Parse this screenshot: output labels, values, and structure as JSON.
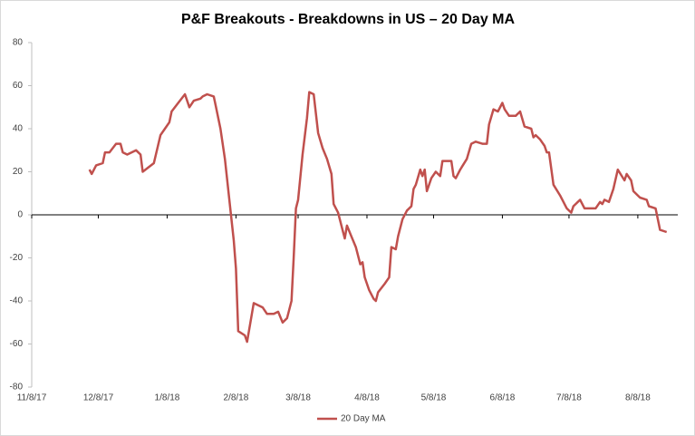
{
  "chart_data": {
    "type": "line",
    "title": "P&F Breakouts - Breakdowns in US – 20 Day MA",
    "x": [
      "2017-12-04",
      "2017-12-05",
      "2017-12-07",
      "2017-12-10",
      "2017-12-11",
      "2017-12-13",
      "2017-12-16",
      "2017-12-18",
      "2017-12-19",
      "2017-12-21",
      "2017-12-25",
      "2017-12-27",
      "2017-12-28",
      "2018-01-02",
      "2018-01-05",
      "2018-01-07",
      "2018-01-09",
      "2018-01-10",
      "2018-01-13",
      "2018-01-16",
      "2018-01-18",
      "2018-01-20",
      "2018-01-23",
      "2018-01-24",
      "2018-01-26",
      "2018-01-29",
      "2018-01-30",
      "2018-02-01",
      "2018-02-03",
      "2018-02-05",
      "2018-02-07",
      "2018-02-08",
      "2018-02-09",
      "2018-02-12",
      "2018-02-13",
      "2018-02-16",
      "2018-02-20",
      "2018-02-22",
      "2018-02-25",
      "2018-02-27",
      "2018-03-01",
      "2018-03-03",
      "2018-03-05",
      "2018-03-06",
      "2018-03-07",
      "2018-03-08",
      "2018-03-10",
      "2018-03-12",
      "2018-03-13",
      "2018-03-15",
      "2018-03-17",
      "2018-03-19",
      "2018-03-21",
      "2018-03-23",
      "2018-03-24",
      "2018-03-26",
      "2018-03-28",
      "2018-03-29",
      "2018-03-30",
      "2018-04-01",
      "2018-04-03",
      "2018-04-05",
      "2018-04-06",
      "2018-04-07",
      "2018-04-09",
      "2018-04-11",
      "2018-04-12",
      "2018-04-13",
      "2018-04-16",
      "2018-04-18",
      "2018-04-19",
      "2018-04-21",
      "2018-04-22",
      "2018-04-24",
      "2018-04-26",
      "2018-04-28",
      "2018-04-29",
      "2018-04-30",
      "2018-05-02",
      "2018-05-03",
      "2018-05-04",
      "2018-05-05",
      "2018-05-07",
      "2018-05-09",
      "2018-05-11",
      "2018-05-12",
      "2018-05-16",
      "2018-05-17",
      "2018-05-18",
      "2018-05-20",
      "2018-05-23",
      "2018-05-25",
      "2018-05-27",
      "2018-05-30",
      "2018-06-01",
      "2018-06-02",
      "2018-06-04",
      "2018-06-06",
      "2018-06-08",
      "2018-06-09",
      "2018-06-11",
      "2018-06-14",
      "2018-06-16",
      "2018-06-18",
      "2018-06-21",
      "2018-06-22",
      "2018-06-23",
      "2018-06-25",
      "2018-06-27",
      "2018-06-28",
      "2018-06-29",
      "2018-07-01",
      "2018-07-04",
      "2018-07-07",
      "2018-07-09",
      "2018-07-10",
      "2018-07-13",
      "2018-07-15",
      "2018-07-18",
      "2018-07-20",
      "2018-07-22",
      "2018-07-23",
      "2018-07-24",
      "2018-07-26",
      "2018-07-28",
      "2018-07-30",
      "2018-08-02",
      "2018-08-03",
      "2018-08-05",
      "2018-08-06",
      "2018-08-09",
      "2018-08-12",
      "2018-08-13",
      "2018-08-16",
      "2018-08-18",
      "2018-08-21"
    ],
    "series": [
      {
        "name": "20 Day MA",
        "color": "#c0504d",
        "values": [
          21,
          19,
          23,
          24,
          29,
          29,
          33,
          33,
          29,
          28,
          30,
          28,
          20,
          24,
          37,
          40,
          43,
          48,
          52,
          56,
          50,
          53,
          54,
          55,
          56,
          55,
          50,
          40,
          26,
          7,
          -12,
          -25,
          -54,
          -56,
          -59,
          -41,
          -43,
          -46,
          -46,
          -45,
          -50,
          -48,
          -40,
          -20,
          3,
          7,
          28,
          45,
          57,
          56,
          38,
          31,
          26,
          19,
          5,
          1,
          -7,
          -11,
          -5,
          -10,
          -15,
          -23,
          -22,
          -29,
          -35,
          -39,
          -40,
          -36,
          -32,
          -29,
          -15,
          -16,
          -10,
          -2,
          2,
          4,
          12,
          14,
          21,
          18,
          21,
          11,
          17,
          20,
          18,
          25,
          25,
          18,
          17,
          21,
          26,
          33,
          34,
          33,
          33,
          42,
          49,
          48,
          52,
          49,
          46,
          46,
          48,
          41,
          40,
          36,
          37,
          35,
          32,
          29,
          29,
          14,
          9,
          3,
          1,
          4,
          7,
          3,
          3,
          3,
          6,
          5,
          7,
          6,
          12,
          21,
          16,
          19,
          16,
          11,
          8,
          7,
          4,
          3,
          -7,
          -8
        ]
      }
    ],
    "xlim": [
      "2017-11-08",
      "2018-08-26"
    ],
    "xticks": [
      {
        "value": "2017-11-08",
        "label": "11/8/17"
      },
      {
        "value": "2017-12-08",
        "label": "12/8/17"
      },
      {
        "value": "2018-01-08",
        "label": "1/8/18"
      },
      {
        "value": "2018-02-08",
        "label": "2/8/18"
      },
      {
        "value": "2018-03-08",
        "label": "3/8/18"
      },
      {
        "value": "2018-04-08",
        "label": "4/8/18"
      },
      {
        "value": "2018-05-08",
        "label": "5/8/18"
      },
      {
        "value": "2018-06-08",
        "label": "6/8/18"
      },
      {
        "value": "2018-07-08",
        "label": "7/8/18"
      },
      {
        "value": "2018-08-08",
        "label": "8/8/18"
      }
    ],
    "ylim": [
      -80,
      80
    ],
    "yticks": [
      -80,
      -60,
      -40,
      -20,
      0,
      20,
      40,
      60,
      80
    ],
    "legend": "bottom"
  }
}
